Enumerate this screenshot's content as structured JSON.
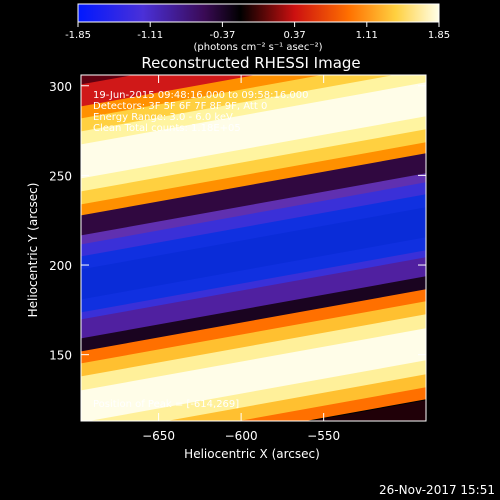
{
  "chart_data": {
    "type": "heatmap",
    "title": "Reconstructed RHESSI Image",
    "xlabel": "Heliocentric X (arcsec)",
    "ylabel": "Heliocentric Y (arcsec)",
    "xlim": [
      -697,
      -488
    ],
    "ylim": [
      113,
      306
    ],
    "x_ticks": [
      -650,
      -600,
      -550
    ],
    "y_ticks": [
      150,
      200,
      250,
      300
    ],
    "colorbar": {
      "ticks": [
        "-1.85",
        "-1.11",
        "-0.37",
        "0.37",
        "1.11",
        "1.85"
      ],
      "range": [
        -1.85,
        1.85
      ],
      "unit_label": "(photons cm⁻² s⁻¹ asec⁻²)"
    },
    "annotations": [
      "19-Jun-2015 09:48:16.000 to 09:58:16.000",
      "Detectors: 3F 5F 6F 7F 8F 9F, Att 0",
      "Energy Range: 3.0 - 6.0 keV",
      "Clean     Total counts: 1.18E+05"
    ],
    "footer_note": "Position of Peak = [-614,269]",
    "colors": {
      "dark_band_center": "#0a2cd8",
      "bright_band_center": "#fffde0"
    }
  },
  "timestamp": "26-Nov-2017 15:51"
}
